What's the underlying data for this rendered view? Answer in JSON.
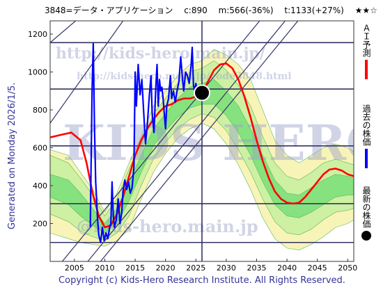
{
  "header": {
    "stock": "3848=データ・アプリケーション",
    "current": "c:890",
    "min": "m:566(-36%)",
    "target": "t:1133(+27%)",
    "rating": "★★☆"
  },
  "side_label": "Generated on Monday 2026/1/5.",
  "copyright": "Copyright (c) Kids-Hero Research Institute. All Rights Reserved.",
  "watermarks": [
    "http://kids-hero.main.jp/",
    "http://kids-hero.main.jp/code3848.html",
    "KIDS HERO",
    "@kids-hero.main.jp"
  ],
  "legend": [
    {
      "label": "ＡＩ予測",
      "color": "#ff0000",
      "kind": "line"
    },
    {
      "label": "過去の株価",
      "color": "#0000ff",
      "kind": "line"
    },
    {
      "label": "最新の株価",
      "color": "#000000",
      "kind": "dot"
    }
  ],
  "colors": {
    "ai_line": "#ff0000",
    "past_line": "#0000ff",
    "band_outer": "#f7f3b0",
    "band_mid": "#c8f0a0",
    "band_inner": "#7ee07a",
    "grid": "#333366",
    "trend": "#333366",
    "watermark": "#9aa0c8"
  },
  "chart_data": {
    "type": "line",
    "xlim": [
      2001,
      2051
    ],
    "ylim": [
      0,
      1270
    ],
    "x_ticks": [
      2005,
      2010,
      2015,
      2020,
      2025,
      2030,
      2035,
      2040,
      2045,
      2050
    ],
    "y_ticks": [
      200,
      400,
      600,
      800,
      1000,
      1200
    ],
    "h_lines": [
      100,
      305,
      610,
      910,
      1155
    ],
    "v_line": 2026,
    "latest_point": {
      "x": 2026,
      "y": 890
    },
    "series": [
      {
        "name": "ＡＩ予測",
        "points": [
          [
            2001,
            655
          ],
          [
            2003,
            670
          ],
          [
            2004.5,
            680
          ],
          [
            2006,
            640
          ],
          [
            2007,
            520
          ],
          [
            2008,
            360
          ],
          [
            2009,
            240
          ],
          [
            2010,
            180
          ],
          [
            2011,
            190
          ],
          [
            2012,
            250
          ],
          [
            2013,
            340
          ],
          [
            2014,
            450
          ],
          [
            2015,
            560
          ],
          [
            2016,
            640
          ],
          [
            2017,
            700
          ],
          [
            2018,
            750
          ],
          [
            2019,
            790
          ],
          [
            2020,
            820
          ],
          [
            2021,
            830
          ],
          [
            2022,
            850
          ],
          [
            2023,
            860
          ],
          [
            2024,
            860
          ],
          [
            2025,
            870
          ],
          [
            2026,
            890
          ],
          [
            2027,
            950
          ],
          [
            2028,
            1010
          ],
          [
            2029,
            1040
          ],
          [
            2030,
            1045
          ],
          [
            2031,
            1020
          ],
          [
            2032,
            960
          ],
          [
            2033,
            870
          ],
          [
            2034,
            760
          ],
          [
            2035,
            640
          ],
          [
            2036,
            530
          ],
          [
            2037,
            440
          ],
          [
            2038,
            370
          ],
          [
            2039,
            330
          ],
          [
            2040,
            310
          ],
          [
            2041,
            305
          ],
          [
            2042,
            310
          ],
          [
            2043,
            340
          ],
          [
            2044,
            380
          ],
          [
            2045,
            420
          ],
          [
            2046,
            460
          ],
          [
            2047,
            485
          ],
          [
            2048,
            490
          ],
          [
            2049,
            480
          ],
          [
            2050,
            460
          ],
          [
            2051,
            450
          ]
        ]
      },
      {
        "name": "過去の株価",
        "points": [
          [
            2007.6,
            180
          ],
          [
            2007.9,
            900
          ],
          [
            2008.1,
            1150
          ],
          [
            2008.3,
            700
          ],
          [
            2008.5,
            420
          ],
          [
            2008.8,
            230
          ],
          [
            2009.0,
            140
          ],
          [
            2009.3,
            100
          ],
          [
            2009.6,
            180
          ],
          [
            2009.9,
            110
          ],
          [
            2010.2,
            150
          ],
          [
            2010.5,
            120
          ],
          [
            2010.8,
            180
          ],
          [
            2011.0,
            200
          ],
          [
            2011.2,
            420
          ],
          [
            2011.4,
            240
          ],
          [
            2011.6,
            180
          ],
          [
            2011.9,
            220
          ],
          [
            2012.2,
            330
          ],
          [
            2012.5,
            200
          ],
          [
            2012.8,
            260
          ],
          [
            2013.0,
            370
          ],
          [
            2013.3,
            430
          ],
          [
            2013.6,
            380
          ],
          [
            2013.9,
            420
          ],
          [
            2014.2,
            360
          ],
          [
            2014.5,
            390
          ],
          [
            2014.8,
            500
          ],
          [
            2015.0,
            1000
          ],
          [
            2015.2,
            820
          ],
          [
            2015.5,
            1040
          ],
          [
            2015.8,
            880
          ],
          [
            2016.1,
            960
          ],
          [
            2016.4,
            790
          ],
          [
            2016.7,
            620
          ],
          [
            2017.0,
            720
          ],
          [
            2017.3,
            860
          ],
          [
            2017.6,
            980
          ],
          [
            2017.8,
            780
          ],
          [
            2018.1,
            680
          ],
          [
            2018.4,
            920
          ],
          [
            2018.6,
            1040
          ],
          [
            2018.8,
            820
          ],
          [
            2019.0,
            960
          ],
          [
            2019.2,
            900
          ],
          [
            2019.4,
            920
          ],
          [
            2019.6,
            860
          ],
          [
            2019.8,
            780
          ],
          [
            2020.0,
            700
          ],
          [
            2020.2,
            820
          ],
          [
            2020.5,
            860
          ],
          [
            2020.8,
            980
          ],
          [
            2021.0,
            860
          ],
          [
            2021.3,
            900
          ],
          [
            2021.6,
            840
          ],
          [
            2021.9,
            900
          ],
          [
            2022.2,
            950
          ],
          [
            2022.5,
            1080
          ],
          [
            2022.8,
            960
          ],
          [
            2023.0,
            900
          ],
          [
            2023.3,
            1000
          ],
          [
            2023.6,
            980
          ],
          [
            2023.9,
            940
          ],
          [
            2024.2,
            1030
          ],
          [
            2024.4,
            1130
          ],
          [
            2024.6,
            930
          ],
          [
            2024.8,
            900
          ],
          [
            2025.0,
            940
          ],
          [
            2025.2,
            860
          ],
          [
            2025.5,
            880
          ],
          [
            2025.8,
            850
          ],
          [
            2026.0,
            890
          ]
        ]
      }
    ],
    "bands": [
      {
        "upper": [
          [
            2001,
            590
          ],
          [
            2004,
            560
          ],
          [
            2006,
            470
          ],
          [
            2008,
            380
          ],
          [
            2010,
            260
          ],
          [
            2012,
            360
          ],
          [
            2014,
            520
          ],
          [
            2016,
            660
          ],
          [
            2018,
            820
          ],
          [
            2020,
            900
          ],
          [
            2022,
            980
          ],
          [
            2024,
            1040
          ],
          [
            2026,
            1060
          ],
          [
            2028,
            1120
          ],
          [
            2030,
            1090
          ],
          [
            2032,
            1040
          ],
          [
            2034,
            960
          ],
          [
            2036,
            800
          ],
          [
            2038,
            640
          ],
          [
            2040,
            560
          ],
          [
            2042,
            520
          ],
          [
            2044,
            560
          ],
          [
            2046,
            600
          ],
          [
            2048,
            620
          ],
          [
            2050,
            600
          ],
          [
            2051,
            580
          ]
        ],
        "lower": [
          [
            2001,
            150
          ],
          [
            2004,
            120
          ],
          [
            2006,
            100
          ],
          [
            2008,
            90
          ],
          [
            2010,
            80
          ],
          [
            2012,
            110
          ],
          [
            2014,
            170
          ],
          [
            2016,
            330
          ],
          [
            2018,
            470
          ],
          [
            2020,
            570
          ],
          [
            2022,
            650
          ],
          [
            2024,
            700
          ],
          [
            2026,
            730
          ],
          [
            2028,
            700
          ],
          [
            2030,
            620
          ],
          [
            2032,
            510
          ],
          [
            2034,
            380
          ],
          [
            2036,
            230
          ],
          [
            2038,
            120
          ],
          [
            2040,
            70
          ],
          [
            2042,
            60
          ],
          [
            2044,
            90
          ],
          [
            2046,
            130
          ],
          [
            2048,
            180
          ],
          [
            2050,
            200
          ],
          [
            2051,
            220
          ]
        ]
      },
      {
        "upper": [
          [
            2001,
            560
          ],
          [
            2004,
            520
          ],
          [
            2006,
            440
          ],
          [
            2008,
            350
          ],
          [
            2010,
            240
          ],
          [
            2012,
            330
          ],
          [
            2014,
            490
          ],
          [
            2016,
            620
          ],
          [
            2018,
            780
          ],
          [
            2020,
            860
          ],
          [
            2022,
            940
          ],
          [
            2024,
            1000
          ],
          [
            2026,
            1020
          ],
          [
            2028,
            1060
          ],
          [
            2030,
            1010
          ],
          [
            2032,
            930
          ],
          [
            2034,
            820
          ],
          [
            2036,
            660
          ],
          [
            2038,
            520
          ],
          [
            2040,
            450
          ],
          [
            2042,
            430
          ],
          [
            2044,
            470
          ],
          [
            2046,
            520
          ],
          [
            2048,
            540
          ],
          [
            2050,
            520
          ],
          [
            2051,
            510
          ]
        ],
        "lower": [
          [
            2001,
            250
          ],
          [
            2004,
            210
          ],
          [
            2006,
            160
          ],
          [
            2008,
            130
          ],
          [
            2010,
            110
          ],
          [
            2012,
            150
          ],
          [
            2014,
            240
          ],
          [
            2016,
            400
          ],
          [
            2018,
            540
          ],
          [
            2020,
            630
          ],
          [
            2022,
            700
          ],
          [
            2024,
            750
          ],
          [
            2026,
            780
          ],
          [
            2028,
            760
          ],
          [
            2030,
            690
          ],
          [
            2032,
            590
          ],
          [
            2034,
            470
          ],
          [
            2036,
            330
          ],
          [
            2038,
            210
          ],
          [
            2040,
            150
          ],
          [
            2042,
            140
          ],
          [
            2044,
            170
          ],
          [
            2046,
            220
          ],
          [
            2048,
            260
          ],
          [
            2050,
            270
          ],
          [
            2051,
            280
          ]
        ]
      },
      {
        "upper": [
          [
            2001,
            460
          ],
          [
            2004,
            430
          ],
          [
            2006,
            360
          ],
          [
            2008,
            280
          ],
          [
            2010,
            200
          ],
          [
            2012,
            280
          ],
          [
            2014,
            420
          ],
          [
            2016,
            560
          ],
          [
            2018,
            700
          ],
          [
            2020,
            780
          ],
          [
            2022,
            860
          ],
          [
            2024,
            920
          ],
          [
            2026,
            940
          ],
          [
            2028,
            960
          ],
          [
            2030,
            900
          ],
          [
            2032,
            820
          ],
          [
            2034,
            700
          ],
          [
            2036,
            560
          ],
          [
            2038,
            430
          ],
          [
            2040,
            360
          ],
          [
            2042,
            350
          ],
          [
            2044,
            390
          ],
          [
            2046,
            430
          ],
          [
            2048,
            460
          ],
          [
            2050,
            450
          ],
          [
            2051,
            440
          ]
        ],
        "lower": [
          [
            2001,
            340
          ],
          [
            2004,
            300
          ],
          [
            2006,
            240
          ],
          [
            2008,
            190
          ],
          [
            2010,
            150
          ],
          [
            2012,
            200
          ],
          [
            2014,
            320
          ],
          [
            2016,
            470
          ],
          [
            2018,
            610
          ],
          [
            2020,
            690
          ],
          [
            2022,
            760
          ],
          [
            2024,
            810
          ],
          [
            2026,
            830
          ],
          [
            2028,
            830
          ],
          [
            2030,
            770
          ],
          [
            2032,
            680
          ],
          [
            2034,
            560
          ],
          [
            2036,
            420
          ],
          [
            2038,
            300
          ],
          [
            2040,
            240
          ],
          [
            2042,
            230
          ],
          [
            2044,
            260
          ],
          [
            2046,
            300
          ],
          [
            2048,
            340
          ],
          [
            2050,
            350
          ],
          [
            2051,
            350
          ]
        ]
      }
    ],
    "trend_lines": [
      [
        [
          2003,
          0
        ],
        [
          2035.5,
          1270
        ]
      ],
      [
        [
          2007.2,
          0
        ],
        [
          2039.7,
          1270
        ]
      ],
      [
        [
          2009.3,
          0
        ],
        [
          2041.8,
          1270
        ]
      ],
      [
        [
          2001,
          1155
        ],
        [
          2005.2,
          1270
        ]
      ],
      [
        [
          2001,
          730
        ],
        [
          2013,
          1270
        ]
      ]
    ]
  }
}
